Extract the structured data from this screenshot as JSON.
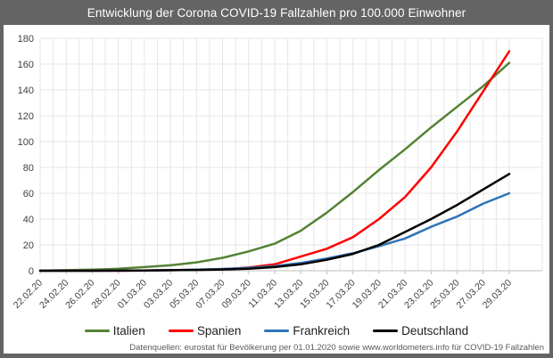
{
  "window": {
    "title": "Entwicklung der Corona COVID-19 Fallzahlen pro 100.000 Einwohner",
    "title_bar_color": "#646464"
  },
  "footer": {
    "text": "Datenquellen: eurostat für Bevölkerung per 01.01.2020 sowie www.worldometers.info für COVID-19 Fallzahlen"
  },
  "chart_data": {
    "type": "line",
    "title": "Entwicklung der Corona COVID-19 Fallzahlen pro 100.000 Einwohner",
    "xlabel": "",
    "ylabel": "",
    "ylim": [
      0,
      180
    ],
    "ytick_step": 20,
    "grid": true,
    "gridline_color": "#e6e6e6",
    "axis_color": "#bfbfbf",
    "tick_label_color": "#404040",
    "days_per_category": 2,
    "legend_position": "bottom",
    "categories": [
      "22.02.20",
      "24.02.20",
      "26.02.20",
      "28.02.20",
      "01.03.20",
      "03.03.20",
      "05.03.20",
      "07.03.20",
      "09.03.20",
      "11.03.20",
      "13.03.20",
      "15.03.20",
      "17.03.20",
      "19.03.20",
      "21.03.20",
      "23.03.20",
      "25.03.20",
      "27.03.20",
      "29.03.20"
    ],
    "series": [
      {
        "name": "Italien",
        "color": "#548235",
        "values": [
          0.1,
          0.4,
          0.8,
          1.5,
          2.8,
          4.2,
          6.5,
          10,
          15,
          21,
          31,
          45,
          61,
          78,
          94,
          111,
          127,
          143,
          161
        ]
      },
      {
        "name": "Spanien",
        "color": "#ff0000",
        "values": [
          0,
          0,
          0,
          0,
          0.2,
          0.4,
          0.7,
          1.2,
          2.5,
          5,
          11,
          17,
          26,
          40,
          57,
          80,
          108,
          139,
          170
        ]
      },
      {
        "name": "Frankreich",
        "color": "#2e75b6",
        "values": [
          0,
          0,
          0,
          0.1,
          0.2,
          0.4,
          0.8,
          1.4,
          2.2,
          3.5,
          6,
          9.5,
          13.5,
          19,
          25,
          34,
          42,
          52,
          60
        ]
      },
      {
        "name": "Deutschland",
        "color": "#000000",
        "values": [
          0,
          0,
          0,
          0.1,
          0.2,
          0.4,
          0.6,
          1,
          1.6,
          2.8,
          5,
          8.5,
          13,
          20,
          30,
          40,
          51,
          63,
          75
        ]
      }
    ]
  }
}
